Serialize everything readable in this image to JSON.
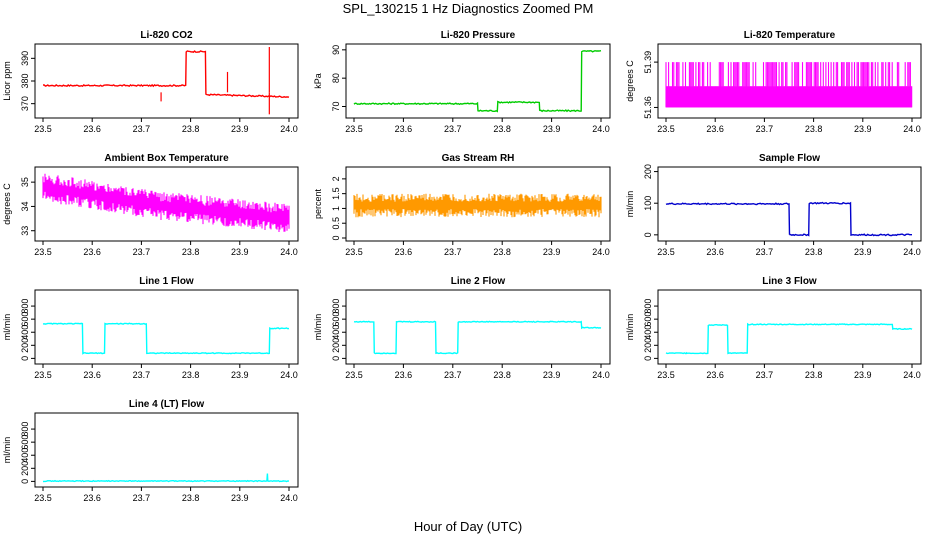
{
  "figure": {
    "title": "SPL_130215  1 Hz Diagnostics Zoomed PM",
    "xlabel": "Hour of Day (UTC)"
  },
  "chart_data": [
    {
      "type": "line",
      "title": "Li-820 CO2",
      "ylabel": "Licor ppm",
      "color": "#ff0000",
      "x_ticks": [
        "23.5",
        "23.6",
        "23.7",
        "23.8",
        "23.9",
        "24.0"
      ],
      "y_ticks": [
        370,
        380,
        390
      ],
      "xlim": [
        23.5,
        24.0
      ],
      "ylim": [
        365,
        395
      ],
      "series": [
        {
          "x": [
            23.5,
            23.79,
            23.791,
            23.83,
            23.831,
            24.0
          ],
          "y": [
            378,
            378,
            393,
            393,
            374,
            373
          ]
        }
      ]
    },
    {
      "type": "line",
      "title": "Li-820 Pressure",
      "ylabel": "kPa",
      "color": "#00cc00",
      "x_ticks": [
        "23.5",
        "23.6",
        "23.7",
        "23.8",
        "23.9",
        "24.0"
      ],
      "y_ticks": [
        70,
        80,
        90
      ],
      "xlim": [
        23.5,
        24.0
      ],
      "ylim": [
        67,
        91
      ],
      "series": [
        {
          "x": [
            23.5,
            23.75,
            23.751,
            23.79,
            23.791,
            23.875,
            23.876,
            23.96,
            23.961,
            24.0
          ],
          "y": [
            71,
            71,
            68.5,
            68.5,
            71.5,
            71.5,
            68.5,
            68.5,
            89.5,
            89.5
          ]
        }
      ]
    },
    {
      "type": "line",
      "title": "Li-820 Temperature",
      "ylabel": "degrees C",
      "color": "#ff00ff",
      "x_ticks": [
        "23.5",
        "23.6",
        "23.7",
        "23.8",
        "23.9",
        "24.0"
      ],
      "y_ticks": [
        51.36,
        51.39
      ],
      "xlim": [
        23.5,
        24.0
      ],
      "ylim": [
        51.355,
        51.4
      ],
      "series": [
        {
          "x": [
            23.5,
            24.0
          ],
          "y_band": [
            51.36,
            51.39
          ]
        }
      ]
    },
    {
      "type": "line",
      "title": "Ambient Box Temperature",
      "ylabel": "degrees C",
      "color": "#ff00ff",
      "x_ticks": [
        "23.5",
        "23.6",
        "23.7",
        "23.8",
        "23.9",
        "24.0"
      ],
      "y_ticks": [
        33.0,
        34.0,
        35.0
      ],
      "xlim": [
        23.5,
        24.0
      ],
      "ylim": [
        32.7,
        35.5
      ],
      "series": [
        {
          "x": [
            23.5,
            23.75,
            24.0
          ],
          "y_center": [
            34.8,
            34.0,
            33.5
          ],
          "spread": 0.6
        }
      ]
    },
    {
      "type": "scatter",
      "title": "Gas Stream RH",
      "ylabel": "percent",
      "color": "#ff9900",
      "x_ticks": [
        "23.5",
        "23.6",
        "23.7",
        "23.8",
        "23.9",
        "24.0"
      ],
      "y_ticks": [
        0.0,
        0.5,
        1.0,
        1.5,
        2.0
      ],
      "xlim": [
        23.5,
        24.0
      ],
      "ylim": [
        0,
        2.3
      ],
      "series": [
        {
          "x": [
            23.5,
            24.0
          ],
          "y_center": [
            1.1,
            1.1
          ],
          "spread": 0.4
        }
      ]
    },
    {
      "type": "line",
      "title": "Sample Flow",
      "ylabel": "ml/min",
      "color": "#0000cc",
      "x_ticks": [
        "23.5",
        "23.6",
        "23.7",
        "23.8",
        "23.9",
        "24.0"
      ],
      "y_ticks": [
        0,
        100,
        200
      ],
      "xlim": [
        23.5,
        24.0
      ],
      "ylim": [
        -10,
        205
      ],
      "series": [
        {
          "x": [
            23.5,
            23.75,
            23.751,
            23.79,
            23.791,
            23.875,
            23.876,
            24.0
          ],
          "y": [
            98,
            98,
            0,
            0,
            100,
            100,
            0,
            0
          ]
        }
      ]
    },
    {
      "type": "line",
      "title": "Line 1 Flow",
      "ylabel": "ml/min",
      "color": "#00ffff",
      "x_ticks": [
        "23.5",
        "23.6",
        "23.7",
        "23.8",
        "23.9",
        "24.0"
      ],
      "y_ticks": [
        0,
        200,
        400,
        600,
        800
      ],
      "xlim": [
        23.5,
        24.0
      ],
      "ylim": [
        -40,
        1000
      ],
      "series": [
        {
          "x": [
            23.5,
            23.58,
            23.581,
            23.625,
            23.626,
            23.71,
            23.711,
            23.96,
            23.961,
            24.0
          ],
          "y": [
            530,
            530,
            80,
            80,
            530,
            530,
            80,
            80,
            460,
            460
          ]
        }
      ]
    },
    {
      "type": "line",
      "title": "Line 2 Flow",
      "ylabel": "ml/min",
      "color": "#00ffff",
      "x_ticks": [
        "23.5",
        "23.6",
        "23.7",
        "23.8",
        "23.9",
        "24.0"
      ],
      "y_ticks": [
        0,
        200,
        400,
        600,
        800
      ],
      "xlim": [
        23.5,
        24.0
      ],
      "ylim": [
        -40,
        1000
      ],
      "series": [
        {
          "x": [
            23.5,
            23.54,
            23.541,
            23.585,
            23.586,
            23.665,
            23.666,
            23.71,
            23.711,
            23.96,
            23.961,
            24.0
          ],
          "y": [
            560,
            560,
            80,
            80,
            560,
            560,
            80,
            80,
            560,
            560,
            470,
            470
          ]
        }
      ]
    },
    {
      "type": "line",
      "title": "Line 3 Flow",
      "ylabel": "ml/min",
      "color": "#00ffff",
      "x_ticks": [
        "23.5",
        "23.6",
        "23.7",
        "23.8",
        "23.9",
        "24.0"
      ],
      "y_ticks": [
        0,
        200,
        400,
        600,
        800
      ],
      "xlim": [
        23.5,
        24.0
      ],
      "ylim": [
        -40,
        1000
      ],
      "series": [
        {
          "x": [
            23.5,
            23.54,
            23.541,
            23.585,
            23.586,
            23.625,
            23.626,
            23.665,
            23.666,
            23.96,
            23.961,
            24.0
          ],
          "y": [
            80,
            80,
            80,
            80,
            510,
            510,
            80,
            80,
            520,
            520,
            450,
            450
          ]
        }
      ]
    },
    {
      "type": "line",
      "title": "Line 4 (LT) Flow",
      "ylabel": "ml/min",
      "color": "#00ffff",
      "x_ticks": [
        "23.5",
        "23.6",
        "23.7",
        "23.8",
        "23.9",
        "24.0"
      ],
      "y_ticks": [
        0,
        200,
        400,
        600,
        800
      ],
      "xlim": [
        23.5,
        24.0
      ],
      "ylim": [
        -40,
        1000
      ],
      "series": [
        {
          "x": [
            23.5,
            23.955,
            23.956,
            23.957,
            24.0
          ],
          "y": [
            5,
            5,
            120,
            5,
            5
          ]
        }
      ]
    }
  ]
}
